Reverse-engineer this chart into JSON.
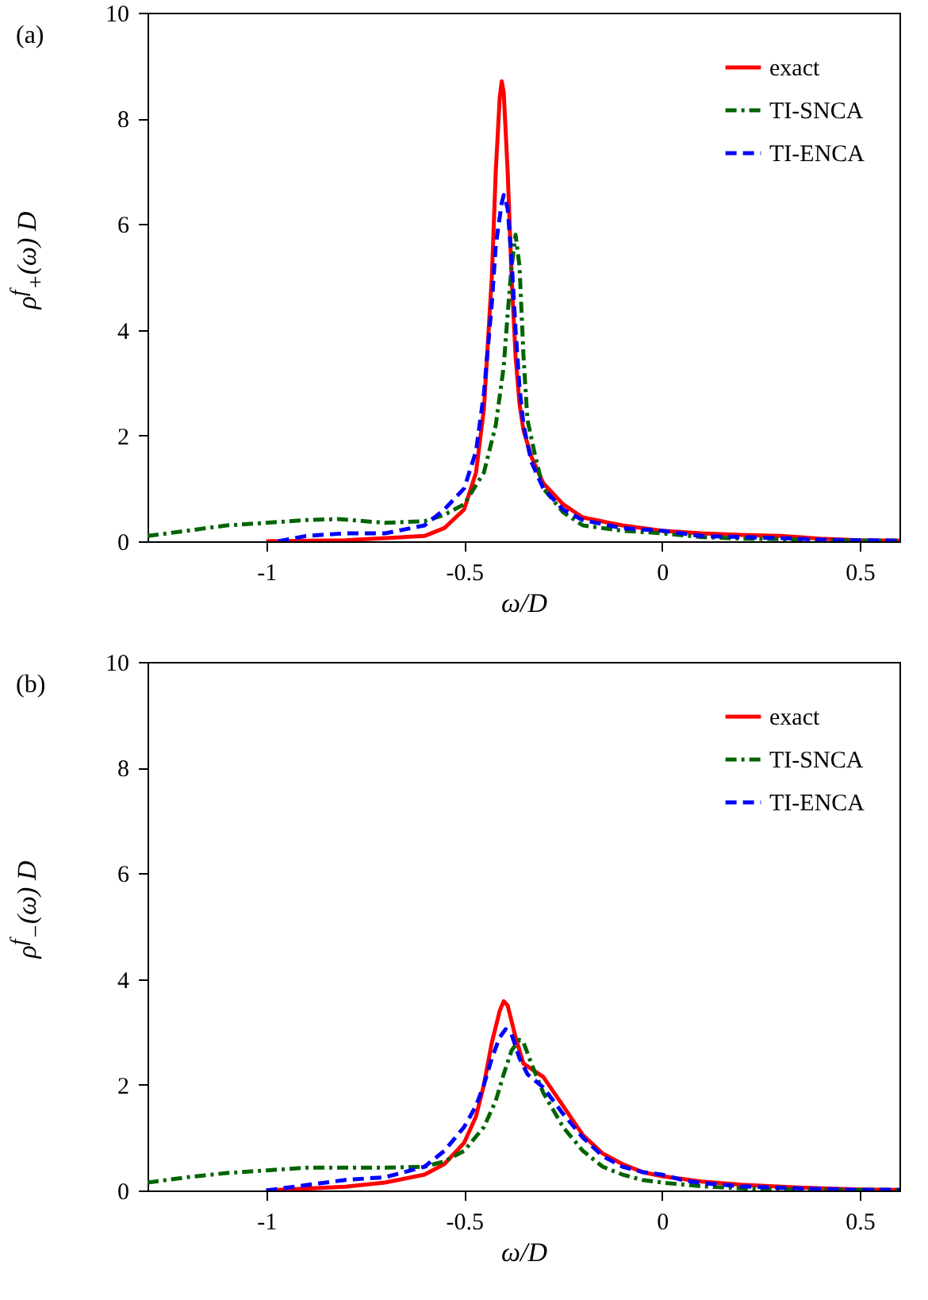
{
  "chart_data": [
    {
      "type": "line",
      "title": "(a)",
      "xlabel": "ω/D",
      "ylabel": "ρ$^{f}$$_{+}$(ω) D",
      "xlim": [
        -1.3,
        0.6
      ],
      "ylim": [
        0,
        10
      ],
      "xticks": [
        -1,
        -0.5,
        0,
        0.5
      ],
      "yticks": [
        0,
        2,
        4,
        6,
        8,
        10
      ],
      "legend": "top right",
      "grid": false,
      "series": [
        {
          "name": "exact",
          "color": "#ff0000",
          "line_style": "solid",
          "x": [
            -1,
            -0.8,
            -0.6,
            -0.55,
            -0.5,
            -0.47,
            -0.45,
            -0.43,
            -0.42,
            -0.41,
            -0.405,
            -0.4,
            -0.39,
            -0.38,
            -0.37,
            -0.36,
            -0.35,
            -0.33,
            -0.3,
            -0.25,
            -0.2,
            -0.1,
            0,
            0.1,
            0.2,
            0.3,
            0.4,
            0.5,
            0.6
          ],
          "values": [
            0,
            0.02,
            0.1,
            0.25,
            0.6,
            1.3,
            2.5,
            5,
            7,
            8.4,
            8.7,
            8.5,
            7,
            5,
            3.5,
            2.6,
            2.1,
            1.6,
            1.1,
            0.7,
            0.45,
            0.3,
            0.2,
            0.15,
            0.12,
            0.1,
            0.05,
            0.02,
            0.01
          ]
        },
        {
          "name": "TI-SNCA",
          "color": "#006400",
          "line_style": "dashdot",
          "x": [
            -1.3,
            -1.2,
            -1.1,
            -1,
            -0.9,
            -0.82,
            -0.7,
            -0.6,
            -0.55,
            -0.5,
            -0.45,
            -0.42,
            -0.4,
            -0.39,
            -0.38,
            -0.37,
            -0.36,
            -0.35,
            -0.34,
            -0.32,
            -0.3,
            -0.25,
            -0.2,
            -0.1,
            0,
            0.1,
            0.2,
            0.3,
            0.4,
            0.5,
            0.6
          ],
          "values": [
            0.1,
            0.2,
            0.3,
            0.35,
            0.4,
            0.42,
            0.35,
            0.38,
            0.5,
            0.7,
            1.3,
            2.2,
            3.3,
            4.3,
            5.2,
            5.8,
            5.2,
            3.5,
            2.3,
            1.6,
            1,
            0.55,
            0.3,
            0.2,
            0.15,
            0.08,
            0.05,
            0.04,
            0.02,
            0.01,
            0.01
          ]
        },
        {
          "name": "TI-ENCA",
          "color": "#0000ff",
          "line_style": "dashed",
          "x": [
            -0.97,
            -0.9,
            -0.8,
            -0.7,
            -0.6,
            -0.55,
            -0.5,
            -0.47,
            -0.45,
            -0.43,
            -0.42,
            -0.405,
            -0.4,
            -0.39,
            -0.38,
            -0.37,
            -0.36,
            -0.35,
            -0.33,
            -0.3,
            -0.25,
            -0.2,
            -0.1,
            0,
            0.1,
            0.2,
            0.3,
            0.4,
            0.5,
            0.6
          ],
          "values": [
            0,
            0.1,
            0.15,
            0.15,
            0.3,
            0.6,
            1,
            1.7,
            2.8,
            4.5,
            5.6,
            6.4,
            6.55,
            6.3,
            5.3,
            4,
            2.9,
            2.2,
            1.5,
            1,
            0.6,
            0.4,
            0.25,
            0.2,
            0.1,
            0.08,
            0.06,
            0.03,
            0.02,
            0.01
          ]
        }
      ]
    },
    {
      "type": "line",
      "title": "(b)",
      "xlabel": "ω/D",
      "ylabel": "ρ$^{f}$$_{−}$(ω) D",
      "xlim": [
        -1.3,
        0.6
      ],
      "ylim": [
        0,
        10
      ],
      "xticks": [
        -1,
        -0.5,
        0,
        0.5
      ],
      "yticks": [
        0,
        2,
        4,
        6,
        8,
        10
      ],
      "legend": "top right",
      "grid": false,
      "series": [
        {
          "name": "exact",
          "color": "#ff0000",
          "line_style": "solid",
          "x": [
            -1,
            -0.8,
            -0.7,
            -0.6,
            -0.55,
            -0.5,
            -0.47,
            -0.45,
            -0.43,
            -0.41,
            -0.4,
            -0.39,
            -0.37,
            -0.35,
            -0.33,
            -0.3,
            -0.25,
            -0.2,
            -0.15,
            -0.1,
            -0.05,
            0,
            0.1,
            0.2,
            0.3,
            0.4,
            0.5,
            0.6
          ],
          "values": [
            0,
            0.07,
            0.15,
            0.3,
            0.5,
            0.9,
            1.4,
            2,
            2.8,
            3.4,
            3.58,
            3.5,
            2.9,
            2.4,
            2.3,
            2.15,
            1.6,
            1.05,
            0.7,
            0.5,
            0.35,
            0.27,
            0.17,
            0.11,
            0.07,
            0.04,
            0.02,
            0.01
          ]
        },
        {
          "name": "TI-SNCA",
          "color": "#006400",
          "line_style": "dashdot",
          "x": [
            -1.3,
            -1.2,
            -1.1,
            -1,
            -0.9,
            -0.8,
            -0.7,
            -0.6,
            -0.55,
            -0.5,
            -0.45,
            -0.42,
            -0.4,
            -0.38,
            -0.36,
            -0.35,
            -0.33,
            -0.3,
            -0.25,
            -0.2,
            -0.15,
            -0.1,
            -0.05,
            0,
            0.1,
            0.2,
            0.3,
            0.4,
            0.5,
            0.6
          ],
          "values": [
            0.15,
            0.25,
            0.33,
            0.38,
            0.43,
            0.43,
            0.43,
            0.45,
            0.55,
            0.75,
            1.2,
            1.7,
            2.2,
            2.65,
            2.85,
            2.8,
            2.4,
            1.85,
            1.2,
            0.75,
            0.45,
            0.3,
            0.2,
            0.15,
            0.08,
            0.04,
            0.02,
            0.01,
            0.01,
            0.01
          ]
        },
        {
          "name": "TI-ENCA",
          "color": "#0000ff",
          "line_style": "dashed",
          "x": [
            -1,
            -0.9,
            -0.8,
            -0.7,
            -0.6,
            -0.55,
            -0.5,
            -0.47,
            -0.45,
            -0.43,
            -0.41,
            -0.395,
            -0.38,
            -0.36,
            -0.34,
            -0.3,
            -0.25,
            -0.2,
            -0.15,
            -0.1,
            -0.05,
            0,
            0.05,
            0.1,
            0.2,
            0.3,
            0.4,
            0.5,
            0.6
          ],
          "values": [
            0,
            0.1,
            0.2,
            0.25,
            0.45,
            0.75,
            1.2,
            1.6,
            2,
            2.5,
            2.9,
            3.05,
            2.95,
            2.5,
            2.2,
            1.95,
            1.45,
            1,
            0.65,
            0.45,
            0.35,
            0.3,
            0.2,
            0.14,
            0.08,
            0.05,
            0.03,
            0.01,
            0.01
          ]
        }
      ]
    }
  ]
}
